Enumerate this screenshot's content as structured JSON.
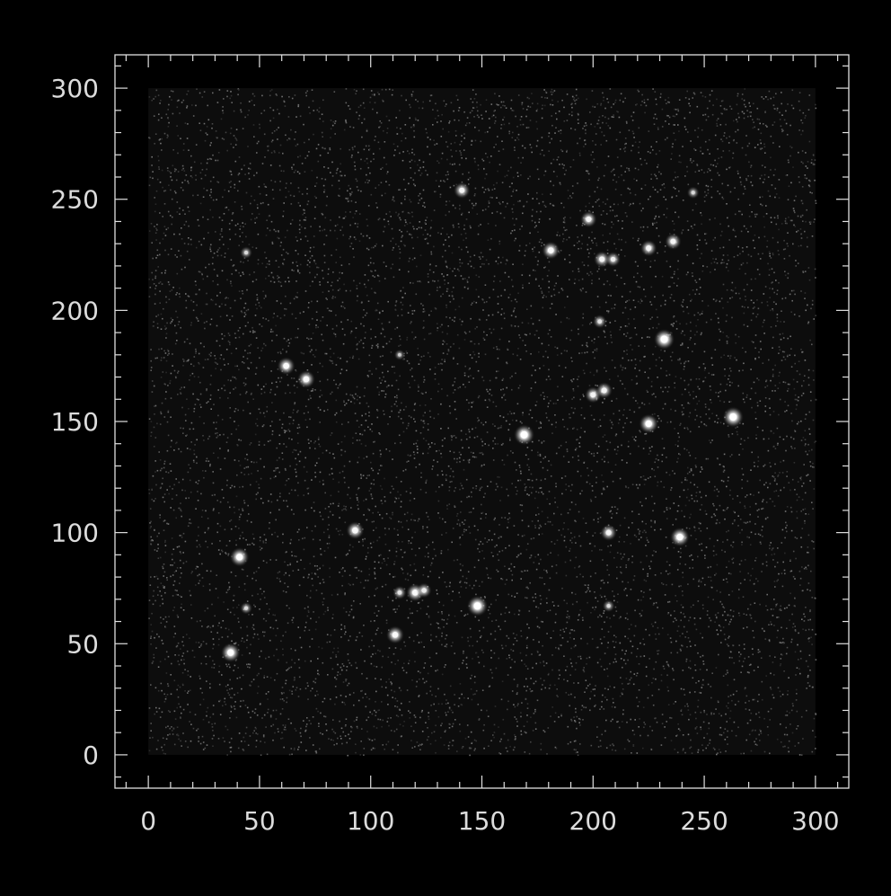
{
  "image": {
    "kind": "astronomical pixel image (star field)",
    "colors": {
      "background": "#000000",
      "frame": "#e0e0e0",
      "noise": "#9a9a9a",
      "star": "#ffffff"
    }
  },
  "axes": {
    "x_range": [
      -15,
      315
    ],
    "y_range": [
      -15,
      315
    ],
    "x_ticks": [
      "0",
      "50",
      "100",
      "150",
      "200",
      "250",
      "300"
    ],
    "y_ticks": [
      "0",
      "50",
      "100",
      "150",
      "200",
      "250",
      "300"
    ]
  },
  "chart_data": {
    "type": "scatter",
    "title": "",
    "xlabel": "",
    "ylabel": "",
    "xlim": [
      -15,
      315
    ],
    "ylim": [
      -15,
      315
    ],
    "image_extent": [
      0,
      300,
      0,
      300
    ],
    "grid": false,
    "series": [
      {
        "points": [
          {
            "x": 141,
            "y": 254,
            "b": 0.7
          },
          {
            "x": 198,
            "y": 241,
            "b": 0.7
          },
          {
            "x": 181,
            "y": 227,
            "b": 0.8
          },
          {
            "x": 204,
            "y": 223,
            "b": 0.7
          },
          {
            "x": 209,
            "y": 223,
            "b": 0.6
          },
          {
            "x": 225,
            "y": 228,
            "b": 0.7
          },
          {
            "x": 236,
            "y": 231,
            "b": 0.7
          },
          {
            "x": 44,
            "y": 226,
            "b": 0.4
          },
          {
            "x": 203,
            "y": 195,
            "b": 0.5
          },
          {
            "x": 232,
            "y": 187,
            "b": 1.0
          },
          {
            "x": 62,
            "y": 175,
            "b": 0.8
          },
          {
            "x": 71,
            "y": 169,
            "b": 0.8
          },
          {
            "x": 200,
            "y": 162,
            "b": 0.7
          },
          {
            "x": 205,
            "y": 164,
            "b": 0.7
          },
          {
            "x": 225,
            "y": 149,
            "b": 0.9
          },
          {
            "x": 263,
            "y": 152,
            "b": 1.0
          },
          {
            "x": 169,
            "y": 144,
            "b": 1.0
          },
          {
            "x": 93,
            "y": 101,
            "b": 0.8
          },
          {
            "x": 207,
            "y": 100,
            "b": 0.7
          },
          {
            "x": 239,
            "y": 98,
            "b": 0.9
          },
          {
            "x": 41,
            "y": 89,
            "b": 0.9
          },
          {
            "x": 113,
            "y": 73,
            "b": 0.5
          },
          {
            "x": 120,
            "y": 73,
            "b": 0.8
          },
          {
            "x": 124,
            "y": 74,
            "b": 0.6
          },
          {
            "x": 148,
            "y": 67,
            "b": 1.0
          },
          {
            "x": 111,
            "y": 54,
            "b": 0.8
          },
          {
            "x": 37,
            "y": 46,
            "b": 0.9
          },
          {
            "x": 44,
            "y": 66,
            "b": 0.4
          },
          {
            "x": 207,
            "y": 67,
            "b": 0.4
          },
          {
            "x": 245,
            "y": 253,
            "b": 0.4
          },
          {
            "x": 113,
            "y": 180,
            "b": 0.3
          }
        ]
      }
    ]
  }
}
